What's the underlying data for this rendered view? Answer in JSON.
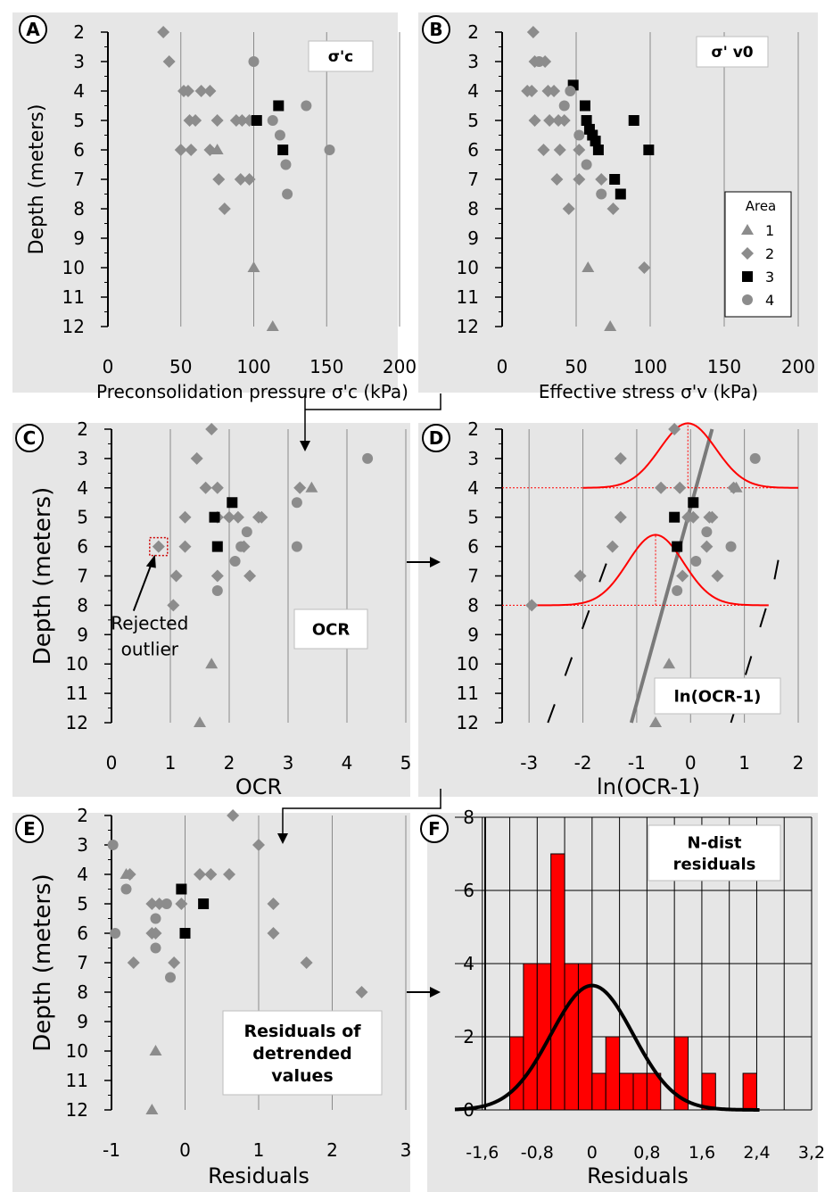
{
  "panels": [
    {
      "letter": "A",
      "x_label": "Preconsolidation pressure σ'c (kPa)",
      "y_label": "Depth (meters)",
      "box_text": [
        "σ'c"
      ]
    },
    {
      "letter": "B",
      "x_label": "Effective stress σ'v (kPa)",
      "box_text": [
        "σ' v0"
      ],
      "legend": {
        "title": "Area",
        "entries": [
          "1",
          "2",
          "3",
          "4"
        ]
      }
    },
    {
      "letter": "C",
      "x_label": "OCR",
      "y_label": "Depth (meters)",
      "box_text": [
        "OCR"
      ],
      "annotation": [
        "Rejected",
        "outlier"
      ]
    },
    {
      "letter": "D",
      "x_label": "ln(OCR-1)",
      "box_text": [
        "ln(OCR-1)"
      ]
    },
    {
      "letter": "E",
      "x_label": "Residuals",
      "y_label": "Depth (meters)",
      "box_text": [
        "Residuals of",
        "detrended",
        "values"
      ]
    },
    {
      "letter": "F",
      "x_label": "Residuals",
      "box_text": [
        "N-dist",
        "residuals"
      ]
    }
  ],
  "colors": {
    "panel_bg": "#e6e6e6",
    "gray_marker": "#8c8c8c",
    "black_marker": "#000000",
    "hist": "#ff0000",
    "curve": "#000000",
    "trend": "#7a7a7a"
  },
  "chart_data": [
    {
      "id": "A",
      "type": "scatter",
      "xlim": [
        0,
        200
      ],
      "ylim": [
        2,
        12
      ],
      "y_inverted": true,
      "x_ticks": [
        "0",
        "50",
        "100",
        "150",
        "200"
      ],
      "y_ticks": [
        "2",
        "3",
        "4",
        "5",
        "6",
        "7",
        "8",
        "9",
        "10",
        "11",
        "12"
      ],
      "series": [
        {
          "name": "1",
          "marker": "triangle",
          "points": [
            [
              75,
              6
            ],
            [
              100,
              10
            ],
            [
              113,
              12
            ]
          ]
        },
        {
          "name": "2",
          "marker": "diamond",
          "points": [
            [
              38,
              2
            ],
            [
              42,
              3
            ],
            [
              52,
              4
            ],
            [
              55,
              4
            ],
            [
              64,
              4
            ],
            [
              70,
              4
            ],
            [
              56,
              5
            ],
            [
              60,
              5
            ],
            [
              75,
              5
            ],
            [
              88,
              5
            ],
            [
              92,
              5
            ],
            [
              97,
              5
            ],
            [
              50,
              6
            ],
            [
              57,
              6
            ],
            [
              70,
              6
            ],
            [
              76,
              7
            ],
            [
              91,
              7
            ],
            [
              97,
              7
            ],
            [
              80,
              8
            ]
          ]
        },
        {
          "name": "3",
          "marker": "square",
          "points": [
            [
              117,
              4.5
            ],
            [
              102,
              5
            ],
            [
              120,
              6
            ]
          ]
        },
        {
          "name": "4",
          "marker": "circle",
          "points": [
            [
              100,
              3
            ],
            [
              136,
              4.5
            ],
            [
              113,
              5
            ],
            [
              118,
              5.5
            ],
            [
              122,
              6.5
            ],
            [
              152,
              6
            ],
            [
              123,
              7.5
            ]
          ]
        }
      ]
    },
    {
      "id": "B",
      "type": "scatter",
      "xlim": [
        0,
        200
      ],
      "ylim": [
        2,
        12
      ],
      "y_inverted": true,
      "x_ticks": [
        "0",
        "50",
        "100",
        "150",
        "200"
      ],
      "y_ticks": [
        "2",
        "3",
        "4",
        "5",
        "6",
        "7",
        "8",
        "9",
        "10",
        "11",
        "12"
      ],
      "series": [
        {
          "name": "1",
          "marker": "triangle",
          "points": [
            [
              58,
              10
            ],
            [
              73,
              12
            ]
          ]
        },
        {
          "name": "2",
          "marker": "diamond",
          "points": [
            [
              21,
              2
            ],
            [
              22,
              3
            ],
            [
              29,
              3
            ],
            [
              17,
              4
            ],
            [
              20,
              4
            ],
            [
              31,
              4
            ],
            [
              35,
              4
            ],
            [
              22,
              5
            ],
            [
              32,
              5
            ],
            [
              38,
              5
            ],
            [
              42,
              5
            ],
            [
              28,
              6
            ],
            [
              39,
              6
            ],
            [
              52,
              6
            ],
            [
              37,
              7
            ],
            [
              52,
              7
            ],
            [
              67,
              7
            ],
            [
              45,
              8
            ],
            [
              75,
              8
            ],
            [
              96,
              10
            ]
          ]
        },
        {
          "name": "3",
          "marker": "square",
          "points": [
            [
              48,
              3.8
            ],
            [
              56,
              4.5
            ],
            [
              57,
              5
            ],
            [
              61,
              5.5
            ],
            [
              63,
              5.7
            ],
            [
              65,
              6
            ],
            [
              59,
              5.3
            ],
            [
              89,
              5
            ],
            [
              99,
              6
            ],
            [
              76,
              7
            ],
            [
              80,
              7.5
            ]
          ]
        },
        {
          "name": "4",
          "marker": "circle",
          "points": [
            [
              25,
              3
            ],
            [
              42,
              4.5
            ],
            [
              46,
              4
            ],
            [
              52,
              5.5
            ],
            [
              57,
              6.5
            ],
            [
              67,
              7.5
            ]
          ]
        }
      ]
    },
    {
      "id": "C",
      "type": "scatter",
      "xlim": [
        0,
        5
      ],
      "ylim": [
        2,
        12
      ],
      "y_inverted": true,
      "x_ticks": [
        "0",
        "1",
        "2",
        "3",
        "4",
        "5"
      ],
      "y_ticks": [
        "2",
        "3",
        "4",
        "5",
        "6",
        "7",
        "8",
        "9",
        "10",
        "11",
        "12"
      ],
      "series": [
        {
          "name": "1",
          "marker": "triangle",
          "points": [
            [
              3.4,
              4
            ],
            [
              1.7,
              10
            ],
            [
              1.5,
              12
            ]
          ]
        },
        {
          "name": "2",
          "marker": "diamond",
          "points": [
            [
              1.7,
              2
            ],
            [
              1.45,
              3
            ],
            [
              1.6,
              4
            ],
            [
              1.8,
              4
            ],
            [
              3.2,
              4
            ],
            [
              1.25,
              5
            ],
            [
              1.8,
              5
            ],
            [
              2.0,
              5
            ],
            [
              2.15,
              5
            ],
            [
              2.5,
              5
            ],
            [
              2.55,
              5
            ],
            [
              0.8,
              6
            ],
            [
              1.25,
              6
            ],
            [
              2.25,
              6
            ],
            [
              1.1,
              7
            ],
            [
              1.8,
              7
            ],
            [
              2.35,
              7
            ],
            [
              1.05,
              8
            ]
          ]
        },
        {
          "name": "3",
          "marker": "square",
          "points": [
            [
              2.05,
              4.5
            ],
            [
              1.75,
              5
            ],
            [
              1.8,
              6
            ]
          ]
        },
        {
          "name": "4",
          "marker": "circle",
          "points": [
            [
              4.35,
              3
            ],
            [
              3.15,
              4.5
            ],
            [
              2.3,
              5.5
            ],
            [
              2.2,
              6
            ],
            [
              3.15,
              6
            ],
            [
              2.1,
              6.5
            ],
            [
              1.8,
              7.5
            ]
          ]
        }
      ],
      "outlier": [
        0.8,
        6
      ]
    },
    {
      "id": "D",
      "type": "scatter",
      "xlim": [
        -3.5,
        2
      ],
      "ylim": [
        2,
        12
      ],
      "y_inverted": true,
      "x_ticks": [
        "-3",
        "-2",
        "-1",
        "0",
        "1",
        "2"
      ],
      "y_ticks": [
        "2",
        "3",
        "4",
        "5",
        "6",
        "7",
        "8",
        "9",
        "10",
        "11",
        "12"
      ],
      "series": [
        {
          "name": "1",
          "marker": "triangle",
          "points": [
            [
              0.85,
              4
            ],
            [
              -0.4,
              10
            ],
            [
              -0.65,
              12
            ]
          ]
        },
        {
          "name": "2",
          "marker": "diamond",
          "points": [
            [
              -0.3,
              2
            ],
            [
              -1.3,
              3
            ],
            [
              -0.55,
              4
            ],
            [
              -0.2,
              4
            ],
            [
              0.8,
              4
            ],
            [
              -1.3,
              5
            ],
            [
              -0.05,
              5
            ],
            [
              0.05,
              5
            ],
            [
              0.35,
              5
            ],
            [
              0.4,
              5
            ],
            [
              -1.45,
              6
            ],
            [
              0.3,
              6
            ],
            [
              -2.05,
              7
            ],
            [
              -0.15,
              7
            ],
            [
              0.5,
              7
            ],
            [
              -2.95,
              8
            ]
          ]
        },
        {
          "name": "3",
          "marker": "square",
          "points": [
            [
              0.05,
              4.5
            ],
            [
              -0.3,
              5
            ],
            [
              -0.25,
              6
            ]
          ]
        },
        {
          "name": "4",
          "marker": "circle",
          "points": [
            [
              1.2,
              3
            ],
            [
              0.3,
              5.5
            ],
            [
              0.1,
              6.5
            ],
            [
              -0.25,
              7.5
            ],
            [
              0.75,
              6
            ]
          ]
        }
      ],
      "trend_line": [
        [
          -1.1,
          12
        ],
        [
          0.4,
          2
        ]
      ],
      "dashed_bounds": [
        [
          [
            -2.65,
            12
          ],
          [
            -1.85,
            8
          ],
          [
            -1.55,
            6.5
          ]
        ],
        [
          [
            0.75,
            12
          ],
          [
            1.55,
            7.2
          ],
          [
            1.7,
            5.8
          ]
        ]
      ],
      "normal_curves": [
        {
          "mean": -0.05,
          "sd": 0.52,
          "baseline_depth": 4,
          "peak_depth": 1.8,
          "x_range": [
            -2,
            2
          ]
        },
        {
          "mean": -0.65,
          "sd": 0.52,
          "baseline_depth": 8,
          "peak_depth": 5.6,
          "x_range": [
            -3,
            1.45
          ]
        }
      ]
    },
    {
      "id": "E",
      "type": "scatter",
      "xlim": [
        -1,
        3
      ],
      "ylim": [
        2,
        12
      ],
      "y_inverted": true,
      "x_ticks": [
        "-1",
        "0",
        "1",
        "2",
        "3"
      ],
      "y_ticks": [
        "2",
        "3",
        "4",
        "5",
        "6",
        "7",
        "8",
        "9",
        "10",
        "11",
        "12"
      ],
      "series": [
        {
          "name": "1",
          "marker": "triangle",
          "points": [
            [
              -0.8,
              4
            ],
            [
              -0.4,
              10
            ],
            [
              -0.45,
              12
            ]
          ]
        },
        {
          "name": "2",
          "marker": "diamond",
          "points": [
            [
              0.65,
              2
            ],
            [
              1.0,
              3
            ],
            [
              -0.75,
              4
            ],
            [
              0.2,
              4
            ],
            [
              0.35,
              4
            ],
            [
              0.6,
              4
            ],
            [
              -0.45,
              5
            ],
            [
              -0.35,
              5
            ],
            [
              -0.05,
              5
            ],
            [
              1.2,
              5
            ],
            [
              -0.45,
              6
            ],
            [
              -0.4,
              6
            ],
            [
              1.2,
              6
            ],
            [
              -0.7,
              7
            ],
            [
              -0.15,
              7
            ],
            [
              1.65,
              7
            ],
            [
              2.4,
              8
            ]
          ]
        },
        {
          "name": "3",
          "marker": "square",
          "points": [
            [
              -0.05,
              4.5
            ],
            [
              0.25,
              5
            ],
            [
              0.0,
              6
            ]
          ]
        },
        {
          "name": "4",
          "marker": "circle",
          "points": [
            [
              -0.98,
              3
            ],
            [
              -0.8,
              4.5
            ],
            [
              -0.25,
              5
            ],
            [
              -0.4,
              5.5
            ],
            [
              -0.95,
              6
            ],
            [
              -0.4,
              6.5
            ],
            [
              -0.2,
              7.5
            ]
          ]
        }
      ]
    },
    {
      "id": "F",
      "type": "bar",
      "xlim": [
        -2.0,
        3.2
      ],
      "ylim": [
        0,
        8
      ],
      "x_ticks": [
        "-1,6",
        "-0,8",
        "0",
        "0,8",
        "1,6",
        "2,4",
        "3,2"
      ],
      "y_ticks": [
        "0",
        "2",
        "4",
        "6",
        "8"
      ],
      "bin_width": 0.2,
      "bins": [
        {
          "x": -1.1,
          "count": 2
        },
        {
          "x": -0.9,
          "count": 4
        },
        {
          "x": -0.7,
          "count": 4
        },
        {
          "x": -0.5,
          "count": 7
        },
        {
          "x": -0.3,
          "count": 4
        },
        {
          "x": -0.1,
          "count": 4
        },
        {
          "x": 0.1,
          "count": 1
        },
        {
          "x": 0.3,
          "count": 2
        },
        {
          "x": 0.5,
          "count": 1
        },
        {
          "x": 0.7,
          "count": 1
        },
        {
          "x": 0.9,
          "count": 1
        },
        {
          "x": 1.3,
          "count": 2
        },
        {
          "x": 1.7,
          "count": 1
        },
        {
          "x": 2.3,
          "count": 1
        }
      ],
      "normal_curve": {
        "mean": 0.0,
        "sd": 0.6,
        "peak": 3.4
      }
    }
  ]
}
